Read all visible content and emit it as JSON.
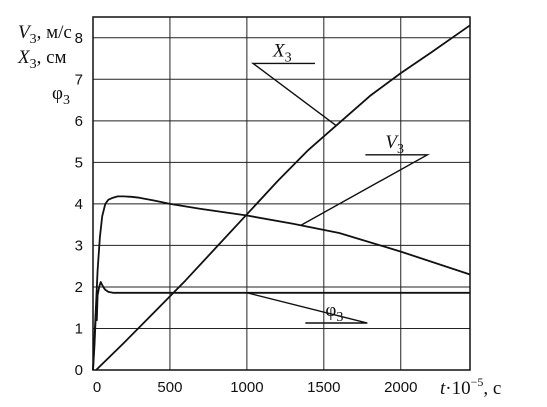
{
  "chart_data": {
    "type": "line",
    "ylabel_lines": [
      {
        "sym": "V",
        "sub": "3",
        "unit": ", м/с"
      },
      {
        "sym": "X",
        "sub": "3",
        "unit": ", см"
      },
      {
        "sym": "φ",
        "sub": "3",
        "unit": ""
      }
    ],
    "xlabel": {
      "sym": "t",
      "mid": "·10",
      "sup": "−5",
      "unit": ", с"
    },
    "xlim": [
      0,
      2450
    ],
    "ylim": [
      0,
      8.5
    ],
    "x_ticks": [
      "0",
      "500",
      "1000",
      "1500",
      "2000"
    ],
    "x_tick_values": [
      0,
      500,
      1000,
      1500,
      2000
    ],
    "y_ticks": [
      "0",
      "1",
      "2",
      "3",
      "4",
      "5",
      "6",
      "7",
      "8"
    ],
    "y_tick_values": [
      0,
      1,
      2,
      3,
      4,
      5,
      6,
      7,
      8
    ],
    "grid_x": [
      0,
      500,
      1000,
      1500,
      2000
    ],
    "grid_y": [
      1,
      2,
      3,
      4,
      5,
      6,
      7,
      8
    ],
    "series": [
      {
        "name": "X",
        "sub": "3",
        "x": [
          20,
          200,
          400,
          600,
          800,
          1000,
          1200,
          1400,
          1600,
          1800,
          2000,
          2200,
          2450
        ],
        "values": [
          0.0,
          0.65,
          1.4,
          2.15,
          2.95,
          3.75,
          4.55,
          5.3,
          5.95,
          6.6,
          7.15,
          7.65,
          8.3
        ]
      },
      {
        "name": "V",
        "sub": "3",
        "x": [
          0,
          10,
          20,
          30,
          45,
          60,
          80,
          100,
          130,
          160,
          200,
          250,
          300,
          400,
          500,
          700,
          1000,
          1300,
          1600,
          2000,
          2450
        ],
        "values": [
          0.0,
          0.8,
          1.6,
          2.4,
          3.2,
          3.7,
          4.0,
          4.1,
          4.15,
          4.18,
          4.18,
          4.17,
          4.15,
          4.08,
          4.0,
          3.88,
          3.72,
          3.52,
          3.3,
          2.85,
          2.3
        ]
      },
      {
        "name": "φ",
        "sub": "3",
        "x": [
          0,
          10,
          20,
          25,
          30,
          40,
          50,
          60,
          70,
          80,
          100,
          130,
          200,
          500,
          1000,
          2000,
          2450
        ],
        "values": [
          0.0,
          0.6,
          1.5,
          1.2,
          1.8,
          2.0,
          2.12,
          2.05,
          1.98,
          1.93,
          1.88,
          1.86,
          1.86,
          1.86,
          1.86,
          1.86,
          1.86
        ]
      }
    ],
    "annotations": [
      {
        "series": "X",
        "sym": "X",
        "sub": "3",
        "x_at": 1580,
        "text_x": 1040,
        "text_y": 7.55
      },
      {
        "series": "V",
        "sym": "V",
        "sub": "3",
        "x_at": 1350,
        "text_x": 1770,
        "text_y": 5.35
      },
      {
        "series": "φ",
        "sym": "φ",
        "sub": "3",
        "x_at": 1000,
        "text_x": 1380,
        "text_y": 1.3
      }
    ]
  }
}
